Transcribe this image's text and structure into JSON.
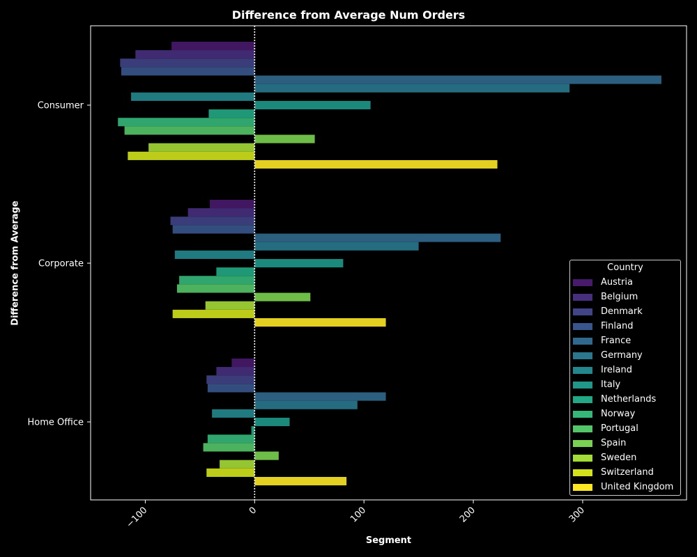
{
  "chart_data": {
    "type": "bar",
    "orientation": "horizontal",
    "title": "Difference from Average Num Orders",
    "xlabel": "Segment",
    "ylabel": "Difference from Average",
    "categories": [
      "Consumer",
      "Corporate",
      "Home Office"
    ],
    "xlim": [
      -150,
      395
    ],
    "xticks": [
      -100,
      0,
      100,
      200,
      300
    ],
    "xtick_labels": [
      "−100",
      "0",
      "100",
      "200",
      "300"
    ],
    "reference_line": 0,
    "grid": false,
    "legend": {
      "title": "Country",
      "placement": "lower-right"
    },
    "series": [
      {
        "name": "Austria",
        "color": "#481a6c",
        "values": [
          -76,
          -41,
          -21
        ]
      },
      {
        "name": "Belgium",
        "color": "#472f7d",
        "values": [
          -109,
          -61,
          -35
        ]
      },
      {
        "name": "Denmark",
        "color": "#414487",
        "values": [
          -123,
          -77,
          -44
        ]
      },
      {
        "name": "Finland",
        "color": "#39568c",
        "values": [
          -122,
          -75,
          -43
        ]
      },
      {
        "name": "France",
        "color": "#31688e",
        "values": [
          372,
          225,
          120
        ]
      },
      {
        "name": "Germany",
        "color": "#2a788e",
        "values": [
          288,
          150,
          94
        ]
      },
      {
        "name": "Ireland",
        "color": "#23888e",
        "values": [
          -113,
          -73,
          -39
        ]
      },
      {
        "name": "Italy",
        "color": "#1f988b",
        "values": [
          106,
          81,
          32
        ]
      },
      {
        "name": "Netherlands",
        "color": "#22a884",
        "values": [
          -42,
          -35,
          -3
        ]
      },
      {
        "name": "Norway",
        "color": "#35b779",
        "values": [
          -125,
          -69,
          -43
        ]
      },
      {
        "name": "Portugal",
        "color": "#54c568",
        "values": [
          -119,
          -71,
          -47
        ]
      },
      {
        "name": "Spain",
        "color": "#7ad151",
        "values": [
          55,
          51,
          22
        ]
      },
      {
        "name": "Sweden",
        "color": "#a5db36",
        "values": [
          -97,
          -45,
          -32
        ]
      },
      {
        "name": "Switzerland",
        "color": "#d2e21b",
        "values": [
          -116,
          -75,
          -44
        ]
      },
      {
        "name": "United Kingdom",
        "color": "#fde725",
        "values": [
          222,
          120,
          84
        ]
      }
    ]
  }
}
